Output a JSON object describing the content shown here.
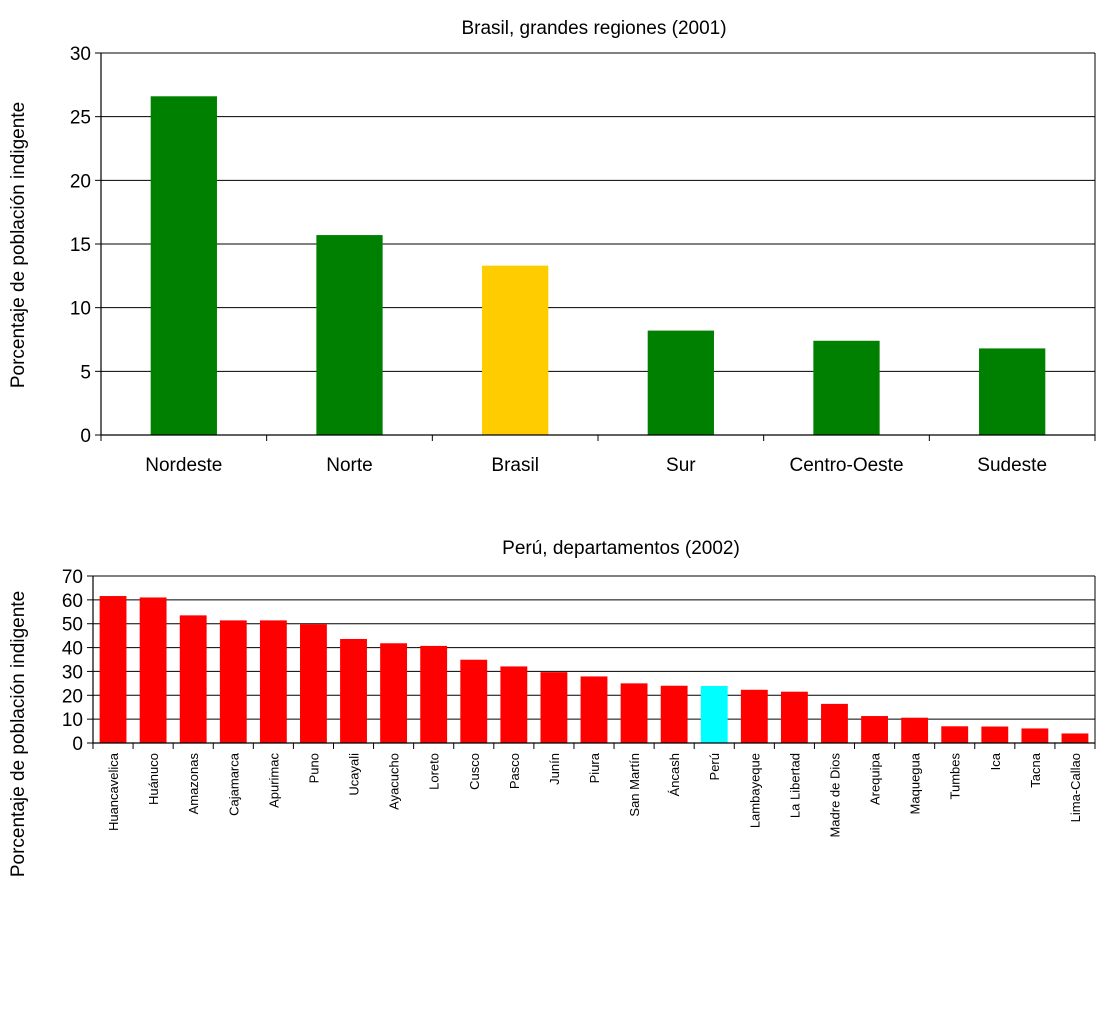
{
  "chart_data": [
    {
      "type": "bar",
      "title": "Brasil, grandes regiones (2001)",
      "xlabel": "",
      "ylabel": "Porcentaje de población indigente",
      "ylim": [
        0,
        30
      ],
      "yticks": [
        0,
        5,
        10,
        15,
        20,
        25,
        30
      ],
      "grid": true,
      "categories": [
        "Nordeste",
        "Norte",
        "Brasil",
        "Sur",
        "Centro-Oeste",
        "Sudeste"
      ],
      "values": [
        26.6,
        15.7,
        13.3,
        8.2,
        7.4,
        6.8
      ],
      "colors": [
        "#008000",
        "#008000",
        "#FFCC00",
        "#008000",
        "#008000",
        "#008000"
      ]
    },
    {
      "type": "bar",
      "title": "Perú, departamentos (2002)",
      "xlabel": "",
      "ylabel": "Porcentaje de población indigente",
      "ylim": [
        0,
        70
      ],
      "yticks": [
        0,
        10,
        20,
        30,
        40,
        50,
        60,
        70
      ],
      "grid": true,
      "categories": [
        "Huancavelica",
        "Huánuco",
        "Amazonas",
        "Cajamarca",
        "Apurimac",
        "Puno",
        "Ucayali",
        "Ayacucho",
        "Loreto",
        "Cusco",
        "Pasco",
        "Junín",
        "Piura",
        "San Martín",
        "Áncash",
        "Perú",
        "Lambayeque",
        "La Libertad",
        "Madre de Dios",
        "Arequipa",
        "Maquegua",
        "Tumbes",
        "Ica",
        "Tacna",
        "Lima-Callao"
      ],
      "values": [
        61.6,
        61.0,
        53.5,
        51.4,
        51.4,
        49.8,
        43.6,
        41.8,
        40.7,
        34.9,
        32.1,
        29.7,
        27.9,
        25.0,
        24.0,
        23.9,
        22.3,
        21.5,
        16.4,
        11.3,
        10.6,
        7.0,
        6.9,
        6.1,
        4.0
      ],
      "colors": [
        "#FF0000",
        "#FF0000",
        "#FF0000",
        "#FF0000",
        "#FF0000",
        "#FF0000",
        "#FF0000",
        "#FF0000",
        "#FF0000",
        "#FF0000",
        "#FF0000",
        "#FF0000",
        "#FF0000",
        "#FF0000",
        "#FF0000",
        "#00FFFF",
        "#FF0000",
        "#FF0000",
        "#FF0000",
        "#FF0000",
        "#FF0000",
        "#FF0000",
        "#FF0000",
        "#FF0000",
        "#FF0000"
      ]
    }
  ]
}
